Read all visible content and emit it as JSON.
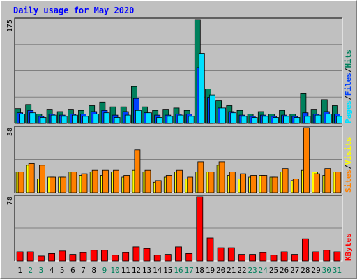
{
  "title": "Daily usage for May 2020",
  "colors": {
    "background": "#c0c0c0",
    "plot_bg": "#c0c0c0",
    "grid": "#808080",
    "hits": "#00805c",
    "files": "#0040ff",
    "pages": "#00e0ff",
    "visits": "#ffff00",
    "sites": "#ff8000",
    "kbytes": "#ff0000",
    "title": "#0000ff",
    "weekday_label": "#000000",
    "weekend_label": "#00805c"
  },
  "chart_data": [
    {
      "type": "bar",
      "id": "hits-files-pages",
      "y_max_label": "175",
      "ylim": [
        0,
        175
      ],
      "legend": {
        "placement": "right-vertical",
        "separator": "/",
        "entries": [
          "Pages",
          "Files",
          "Hits"
        ]
      },
      "x": [
        "1",
        "2",
        "3",
        "4",
        "5",
        "6",
        "7",
        "8",
        "9",
        "10",
        "11",
        "12",
        "13",
        "14",
        "15",
        "16",
        "17",
        "18",
        "19",
        "20",
        "21",
        "22",
        "23",
        "24",
        "25",
        "26",
        "27",
        "28",
        "29",
        "30",
        "31"
      ],
      "weekend": [
        false,
        true,
        true,
        false,
        false,
        false,
        false,
        false,
        true,
        true,
        false,
        false,
        false,
        false,
        false,
        true,
        true,
        false,
        false,
        false,
        false,
        false,
        true,
        true,
        false,
        false,
        false,
        false,
        false,
        true,
        true
      ],
      "series": [
        {
          "name": "Hits",
          "values": [
            25,
            32,
            16,
            24,
            20,
            24,
            22,
            30,
            36,
            28,
            28,
            62,
            28,
            22,
            24,
            26,
            22,
            175,
            58,
            38,
            30,
            22,
            16,
            20,
            16,
            22,
            16,
            50,
            24,
            40,
            30
          ]
        },
        {
          "name": "Files",
          "values": [
            18,
            22,
            12,
            16,
            14,
            16,
            16,
            20,
            22,
            14,
            20,
            42,
            18,
            14,
            14,
            16,
            16,
            94,
            44,
            26,
            20,
            14,
            12,
            14,
            12,
            14,
            12,
            18,
            16,
            20,
            16
          ]
        },
        {
          "name": "Pages",
          "values": [
            16,
            18,
            10,
            14,
            12,
            14,
            12,
            16,
            18,
            10,
            14,
            22,
            18,
            10,
            12,
            14,
            12,
            118,
            48,
            26,
            18,
            12,
            10,
            12,
            10,
            12,
            10,
            12,
            14,
            16,
            12
          ]
        }
      ]
    },
    {
      "type": "bar",
      "id": "sites-visits",
      "y_max_label": "38",
      "ylim": [
        0,
        38
      ],
      "legend": {
        "placement": "right-vertical",
        "separator": "/",
        "entries": [
          "Sites",
          "Visits"
        ]
      },
      "x": [
        "1",
        "2",
        "3",
        "4",
        "5",
        "6",
        "7",
        "8",
        "9",
        "10",
        "11",
        "12",
        "13",
        "14",
        "15",
        "16",
        "17",
        "18",
        "19",
        "20",
        "21",
        "22",
        "23",
        "24",
        "25",
        "26",
        "27",
        "28",
        "29",
        "30",
        "31"
      ],
      "series": [
        {
          "name": "Visits",
          "values": [
            12,
            16,
            8,
            9,
            9,
            12,
            10,
            12,
            10,
            12,
            9,
            13,
            12,
            6,
            9,
            12,
            8,
            12,
            12,
            16,
            10,
            8,
            9,
            10,
            9,
            12,
            7,
            13,
            12,
            10,
            12
          ]
        },
        {
          "name": "Sites",
          "values": [
            12,
            17,
            16,
            9,
            9,
            12,
            11,
            13,
            13,
            13,
            10,
            25,
            13,
            7,
            10,
            13,
            9,
            18,
            12,
            18,
            12,
            11,
            10,
            10,
            9,
            14,
            8,
            38,
            11,
            14,
            12
          ]
        }
      ]
    },
    {
      "type": "bar",
      "id": "kbytes",
      "y_max_label": "78",
      "ylim": [
        0,
        78
      ],
      "legend": {
        "placement": "right-vertical",
        "entries": [
          "KBytes"
        ]
      },
      "x": [
        "1",
        "2",
        "3",
        "4",
        "5",
        "6",
        "7",
        "8",
        "9",
        "10",
        "11",
        "12",
        "13",
        "14",
        "15",
        "16",
        "17",
        "18",
        "19",
        "20",
        "21",
        "22",
        "23",
        "24",
        "25",
        "26",
        "27",
        "28",
        "29",
        "30",
        "31"
      ],
      "series": [
        {
          "name": "KBytes",
          "values": [
            11,
            11,
            6,
            9,
            12,
            8,
            10,
            13,
            13,
            7,
            10,
            17,
            15,
            7,
            8,
            17,
            9,
            78,
            28,
            16,
            16,
            8,
            8,
            10,
            7,
            11,
            8,
            27,
            11,
            13,
            11
          ]
        }
      ]
    }
  ]
}
